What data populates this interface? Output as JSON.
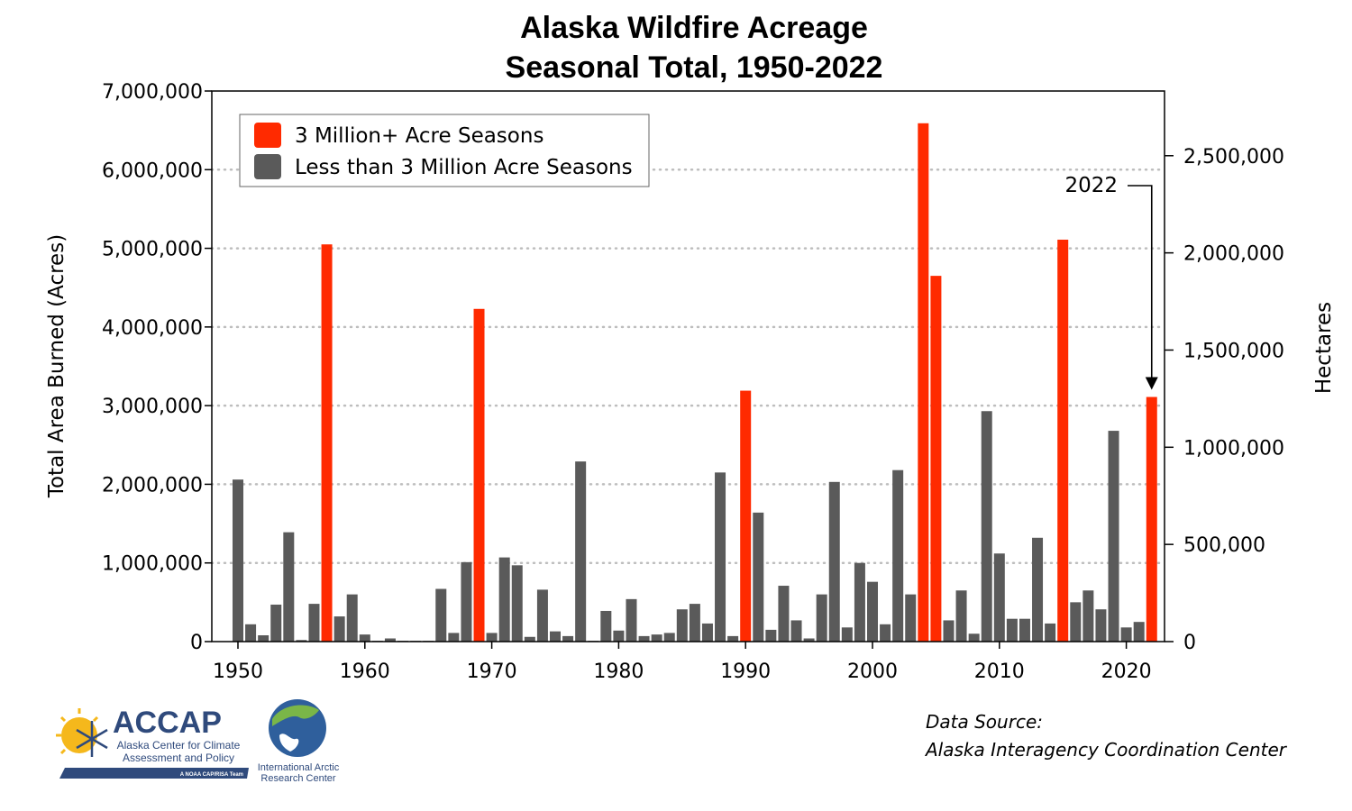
{
  "chart_data": {
    "type": "bar",
    "title": [
      "Alaska Wildfire Acreage",
      "Seasonal Total, 1950-2022"
    ],
    "ylabel": "Total Area Burned (Acres)",
    "ylabel_right": "Hectares",
    "ylim": [
      0,
      7000000
    ],
    "yticks": [
      "0",
      "1,000,000",
      "2,000,000",
      "3,000,000",
      "4,000,000",
      "5,000,000",
      "6,000,000",
      "7,000,000"
    ],
    "yticks_right": [
      "0",
      "500,000",
      "1,000,000",
      "1,500,000",
      "2,000,000",
      "2,500,000"
    ],
    "xticks": [
      "1950",
      "1960",
      "1970",
      "1980",
      "1990",
      "2000",
      "2010",
      "2020"
    ],
    "grid": "horizontal dotted",
    "legend_placement": "top-left",
    "threshold": 3000000,
    "series": [
      {
        "name": "3 Million+ Acre Seasons",
        "color": "#ff2a00"
      },
      {
        "name": "Less than 3 Million Acre Seasons",
        "color": "#5a5a5a"
      }
    ],
    "years": [
      1950,
      1951,
      1952,
      1953,
      1954,
      1955,
      1956,
      1957,
      1958,
      1959,
      1960,
      1961,
      1962,
      1963,
      1964,
      1965,
      1966,
      1967,
      1968,
      1969,
      1970,
      1971,
      1972,
      1973,
      1974,
      1975,
      1976,
      1977,
      1978,
      1979,
      1980,
      1981,
      1982,
      1983,
      1984,
      1985,
      1986,
      1987,
      1988,
      1989,
      1990,
      1991,
      1992,
      1993,
      1994,
      1995,
      1996,
      1997,
      1998,
      1999,
      2000,
      2001,
      2002,
      2003,
      2004,
      2005,
      2006,
      2007,
      2008,
      2009,
      2010,
      2011,
      2012,
      2013,
      2014,
      2015,
      2016,
      2017,
      2018,
      2019,
      2020,
      2021,
      2022
    ],
    "values": [
      2060000,
      220000,
      80000,
      470000,
      1390000,
      20000,
      480000,
      5050000,
      320000,
      600000,
      90000,
      10000,
      40000,
      10000,
      10000,
      10000,
      670000,
      110000,
      1010000,
      4230000,
      110000,
      1070000,
      970000,
      60000,
      660000,
      130000,
      70000,
      2290000,
      10000,
      390000,
      140000,
      540000,
      70000,
      90000,
      110000,
      410000,
      480000,
      230000,
      2150000,
      70000,
      3190000,
      1640000,
      150000,
      710000,
      270000,
      40000,
      600000,
      2030000,
      180000,
      1000000,
      760000,
      220000,
      2180000,
      600000,
      6590000,
      4650000,
      270000,
      650000,
      100000,
      2930000,
      1120000,
      290000,
      290000,
      1320000,
      230000,
      5110000,
      500000,
      650000,
      410000,
      2680000,
      180000,
      250000,
      3110000
    ],
    "annotations": [
      {
        "text": "2022",
        "target_year": 2022
      }
    ]
  },
  "source": {
    "line1": "Data Source:",
    "line2": "Alaska Interagency Coordination Center"
  },
  "logos": {
    "accap_name": "ACCAP",
    "accap_sub1": "Alaska Center for Climate",
    "accap_sub2": "Assessment and Policy",
    "accap_tag": "A NOAA CAP/RISA Team",
    "iarc_line1": "International Arctic",
    "iarc_line2": "Research Center"
  }
}
